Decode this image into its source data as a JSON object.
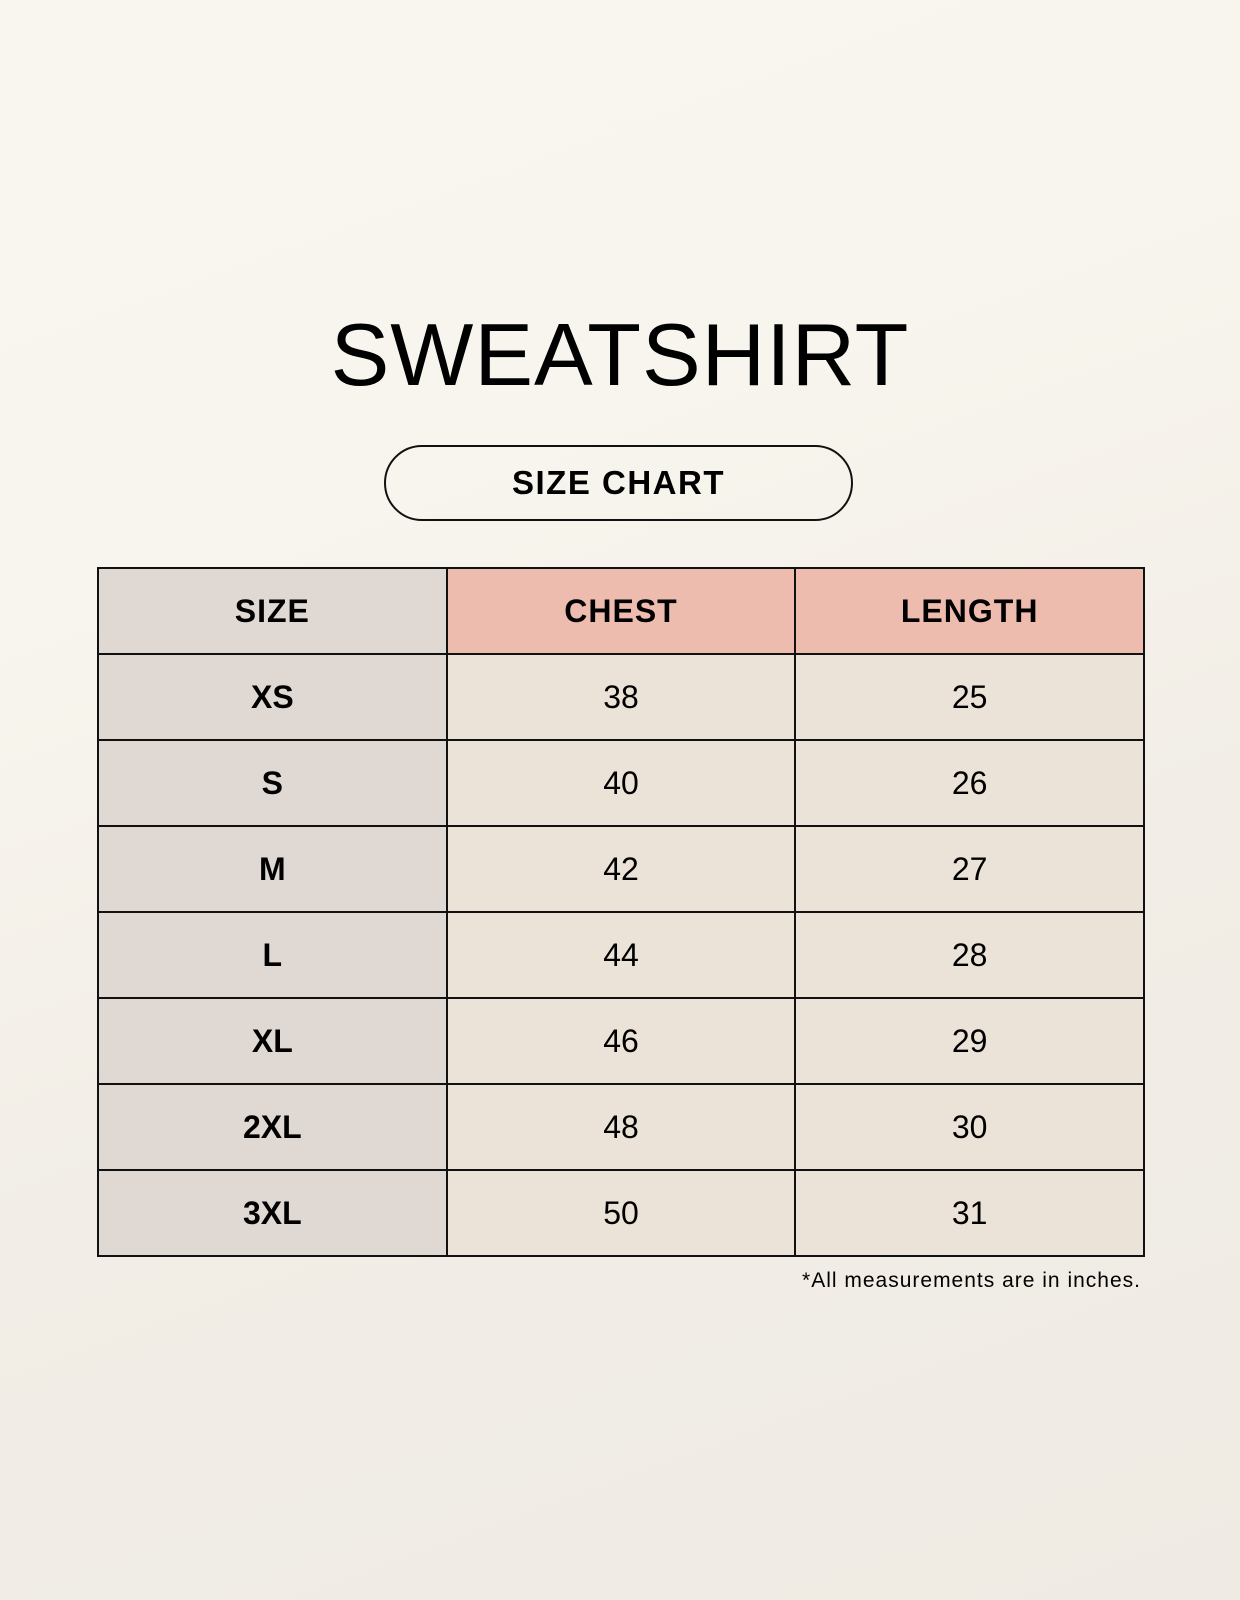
{
  "title": "SWEATSHIRT",
  "subtitle": "SIZE CHART",
  "table": {
    "headers": [
      "SIZE",
      "CHEST",
      "LENGTH"
    ],
    "rows": [
      [
        "XS",
        "38",
        "25"
      ],
      [
        "S",
        "40",
        "26"
      ],
      [
        "M",
        "42",
        "27"
      ],
      [
        "L",
        "44",
        "28"
      ],
      [
        "XL",
        "46",
        "29"
      ],
      [
        "2XL",
        "48",
        "30"
      ],
      [
        "3XL",
        "50",
        "31"
      ]
    ]
  },
  "note": "*All measurements are in inches.",
  "colors": {
    "size_column": "#e0d9d3",
    "header_accent": "#eebcaf",
    "cell": "#ebe3d8",
    "background": "#f8f5ee"
  }
}
